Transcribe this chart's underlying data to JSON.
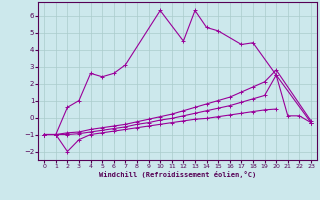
{
  "xlabel": "Windchill (Refroidissement éolien,°C)",
  "background_color": "#cce8ec",
  "grid_color": "#aacccc",
  "line_color": "#990099",
  "xlim": [
    -0.5,
    23.5
  ],
  "ylim": [
    -2.5,
    6.8
  ],
  "xticks": [
    0,
    1,
    2,
    3,
    4,
    5,
    6,
    7,
    8,
    9,
    10,
    11,
    12,
    13,
    14,
    15,
    16,
    17,
    18,
    19,
    20,
    21,
    22,
    23
  ],
  "yticks": [
    -2,
    -1,
    0,
    1,
    2,
    3,
    4,
    5,
    6
  ],
  "series": [
    {
      "x": [
        0,
        1,
        2,
        3,
        4,
        5,
        6,
        7,
        10,
        12,
        13,
        14,
        15,
        17,
        18,
        20,
        21,
        22,
        23
      ],
      "y": [
        -1,
        -1,
        0.6,
        1.0,
        2.6,
        2.4,
        2.6,
        3.1,
        6.3,
        4.5,
        6.3,
        5.3,
        5.1,
        4.3,
        4.4,
        2.5,
        0.1,
        0.1,
        -0.3
      ]
    },
    {
      "x": [
        0,
        1,
        2,
        3,
        4,
        5,
        6,
        7,
        8,
        9,
        10,
        11,
        12,
        13,
        14,
        15,
        16,
        17,
        18,
        19,
        20,
        23
      ],
      "y": [
        -1,
        -1,
        -0.9,
        -0.85,
        -0.7,
        -0.6,
        -0.5,
        -0.4,
        -0.25,
        -0.1,
        0.05,
        0.2,
        0.4,
        0.6,
        0.8,
        1.0,
        1.2,
        1.5,
        1.8,
        2.1,
        2.8,
        -0.2
      ]
    },
    {
      "x": [
        0,
        1,
        2,
        3,
        4,
        5,
        6,
        7,
        8,
        9,
        10,
        11,
        12,
        13,
        14,
        15,
        16,
        17,
        18,
        19,
        20,
        23
      ],
      "y": [
        -1,
        -1,
        -1.0,
        -0.95,
        -0.85,
        -0.75,
        -0.65,
        -0.55,
        -0.4,
        -0.3,
        -0.15,
        -0.05,
        0.1,
        0.25,
        0.4,
        0.55,
        0.7,
        0.9,
        1.1,
        1.3,
        2.5,
        -0.3
      ]
    },
    {
      "x": [
        0,
        1,
        2,
        3,
        4,
        5,
        6,
        7,
        8,
        9,
        10,
        11,
        12,
        13,
        14,
        15,
        16,
        17,
        18,
        19,
        20,
        21,
        22,
        23
      ],
      "y": [
        -1,
        -1,
        -2.0,
        -1.3,
        -1.0,
        -0.9,
        -0.8,
        -0.7,
        -0.6,
        -0.5,
        -0.4,
        -0.3,
        -0.2,
        -0.1,
        -0.05,
        0.05,
        0.15,
        0.25,
        0.35,
        0.45,
        0.5,
        null,
        null,
        -0.3
      ]
    }
  ]
}
